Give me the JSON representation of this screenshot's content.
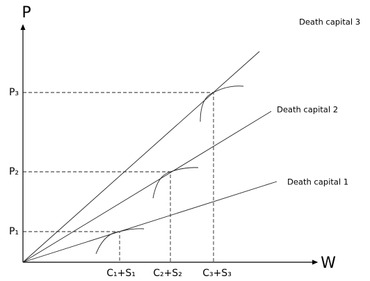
{
  "axes": {
    "y_label": "P",
    "x_label": "W"
  },
  "y_labels": [
    "P₁",
    "P₂",
    "P₃"
  ],
  "x_labels": [
    "C₁+S₁",
    "C₂+S₂",
    "C₃+S₃"
  ],
  "lines": [
    {
      "label": "Death capital 1"
    },
    {
      "label": "Death capital 2"
    },
    {
      "label": "Death capital 3"
    }
  ]
}
